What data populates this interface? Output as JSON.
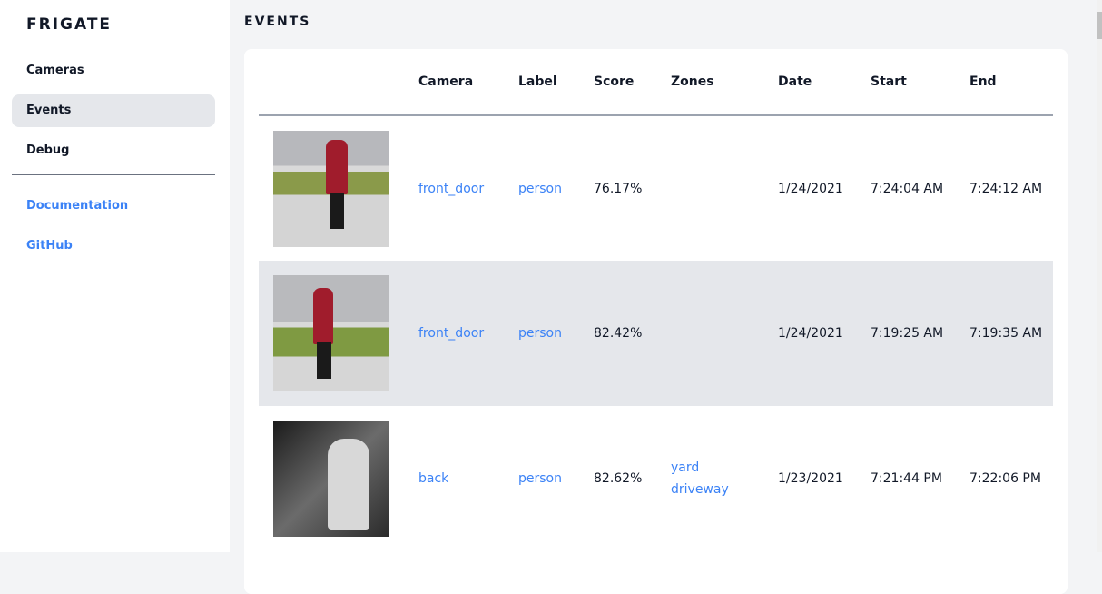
{
  "sidebar": {
    "brand": "FRIGATE",
    "items": [
      {
        "label": "Cameras"
      },
      {
        "label": "Events",
        "active": true
      },
      {
        "label": "Debug"
      }
    ],
    "links": [
      {
        "label": "Documentation"
      },
      {
        "label": "GitHub"
      }
    ]
  },
  "page": {
    "title": "EVENTS"
  },
  "table": {
    "headers": [
      "",
      "Camera",
      "Label",
      "Score",
      "Zones",
      "Date",
      "Start",
      "End"
    ],
    "rows": [
      {
        "camera": "front_door",
        "label": "person",
        "score": "76.17%",
        "zones": [
          "",
          ""
        ],
        "date": "1/24/2021",
        "start": "7:24:04 AM",
        "end": "7:24:12 AM"
      },
      {
        "camera": "front_door",
        "label": "person",
        "score": "82.42%",
        "zones": [
          "",
          ""
        ],
        "date": "1/24/2021",
        "start": "7:19:25 AM",
        "end": "7:19:35 AM"
      },
      {
        "camera": "back",
        "label": "person",
        "score": "82.62%",
        "zones": [
          "yard",
          "driveway"
        ],
        "date": "1/23/2021",
        "start": "7:21:44 PM",
        "end": "7:22:06 PM"
      }
    ]
  },
  "colors": {
    "accent": "#3b82f6",
    "active_bg": "#e5e7eb",
    "page_bg": "#f3f4f6"
  }
}
